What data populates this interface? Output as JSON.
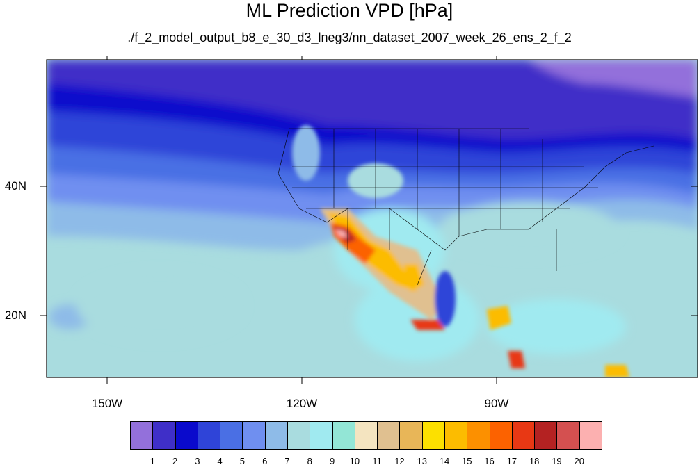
{
  "map": {
    "title": "ML Prediction VPD [hPa]",
    "subtitle": "./f_2_model_output_b8_e_30_d3_lneg3/nn_dataset_2007_week_26_ens_2_f_2",
    "longitude_labels": [
      "150W",
      "120W",
      "90W"
    ],
    "latitude_labels": [
      "40N",
      "20N"
    ]
  },
  "colorbar": {
    "labels": [
      "1",
      "2",
      "3",
      "4",
      "5",
      "6",
      "7",
      "8",
      "9",
      "10",
      "11",
      "12",
      "13",
      "14",
      "15",
      "16",
      "17",
      "18",
      "19",
      "20"
    ],
    "colors": [
      "#9370db",
      "#3f2fc8",
      "#0a0acc",
      "#2f44d8",
      "#4a6fe4",
      "#6f8ff0",
      "#8ebbe8",
      "#a9dcdf",
      "#a0eaf0",
      "#93e6d6",
      "#f4e4c0",
      "#e0c090",
      "#e8b658",
      "#fce000",
      "#fcbc00",
      "#fc9000",
      "#fc6200",
      "#e83814",
      "#b42222",
      "#d45050",
      "#fcb0b0"
    ]
  }
}
